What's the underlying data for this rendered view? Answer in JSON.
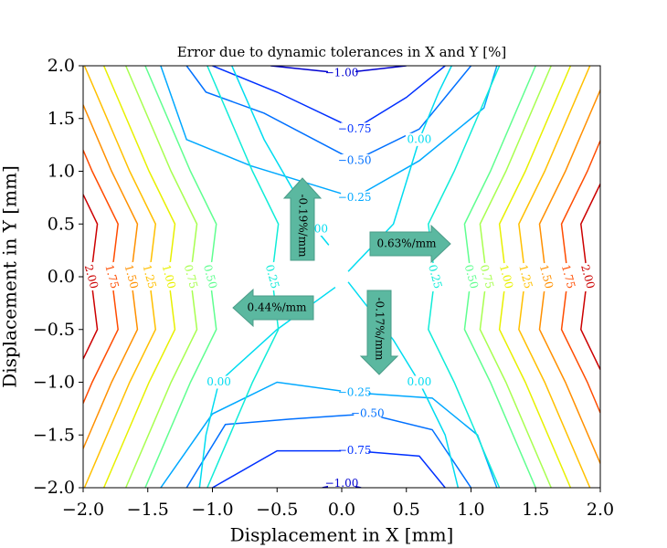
{
  "chart_data": {
    "type": "contour",
    "title": "Error due to dynamic tolerances in X and Y [%]",
    "x_label": "Displacement in X [mm]",
    "y_label": "Displacement in Y [mm]",
    "xlim": [
      -2,
      2
    ],
    "ylim": [
      -2,
      2
    ],
    "xticks": [
      {
        "value": -2,
        "label": "−2.0"
      },
      {
        "value": -1.5,
        "label": "−1.5"
      },
      {
        "value": -1,
        "label": "−1.0"
      },
      {
        "value": -0.5,
        "label": "−0.5"
      },
      {
        "value": 0,
        "label": "0.0"
      },
      {
        "value": 0.5,
        "label": "0.5"
      },
      {
        "value": 1,
        "label": "1.0"
      },
      {
        "value": 1.5,
        "label": "1.5"
      },
      {
        "value": 2,
        "label": "2.0"
      }
    ],
    "yticks": [
      {
        "value": -2,
        "label": "−2.0"
      },
      {
        "value": -1.5,
        "label": "−1.5"
      },
      {
        "value": -1,
        "label": "−1.0"
      },
      {
        "value": -0.5,
        "label": "−0.5"
      },
      {
        "value": 0,
        "label": "0.0"
      },
      {
        "value": 0.5,
        "label": "0.5"
      },
      {
        "value": 1,
        "label": "1.0"
      },
      {
        "value": 1.5,
        "label": "1.5"
      },
      {
        "value": 2,
        "label": "2.0"
      }
    ],
    "contours": [
      {
        "level": -1,
        "level_label": "−1.00",
        "color": "#0000d0",
        "pieces": [
          {
            "x": [
              -0.55,
              0.0,
              0.5
            ],
            "y": [
              2,
              1.93,
              2
            ]
          },
          {
            "x": [
              -0.15,
              0.0,
              0.15
            ],
            "y": [
              -2,
              -1.96,
              -2
            ]
          }
        ]
      },
      {
        "level": -0.75,
        "level_label": "−0.75",
        "color": "#0030ff",
        "pieces": [
          {
            "x": [
              -1.0,
              -0.5,
              0.1,
              0.5,
              0.8
            ],
            "y": [
              2,
              1.75,
              1.4,
              1.7,
              2
            ]
          },
          {
            "x": [
              -1.0,
              -0.5,
              0.1,
              0.6,
              0.8
            ],
            "y": [
              -2,
              -1.65,
              -1.65,
              -1.7,
              -2
            ]
          }
        ]
      },
      {
        "level": -0.5,
        "level_label": "−0.50",
        "color": "#0070ff",
        "pieces": [
          {
            "x": [
              -1.2,
              -1.05,
              -0.6,
              0.1,
              0.6,
              1.0
            ],
            "y": [
              2,
              1.75,
              1.55,
              1.1,
              1.4,
              2
            ]
          },
          {
            "x": [
              -1.2,
              -0.9,
              -0.4,
              0.2,
              0.7,
              1.0
            ],
            "y": [
              -2,
              -1.4,
              -1.35,
              -1.3,
              -1.45,
              -2
            ]
          }
        ]
      },
      {
        "level": -0.25,
        "level_label": "−0.25",
        "color": "#00a8ff",
        "pieces": [
          {
            "x": [
              -1.4,
              -1.2,
              -0.7,
              0.1,
              0.6,
              1.1,
              1.2
            ],
            "y": [
              2,
              1.3,
              1.05,
              0.75,
              1.1,
              1.6,
              2
            ]
          },
          {
            "x": [
              -1.4,
              -1.0,
              -0.5,
              0.1,
              0.7,
              1.05,
              1.2
            ],
            "y": [
              -2,
              -1.3,
              -1.0,
              -1.1,
              -1.15,
              -1.5,
              -2
            ]
          }
        ]
      },
      {
        "level": 0,
        "level_label": "0.00",
        "color": "#00dcf0",
        "pieces": [
          {
            "x": [
              -0.85,
              -0.6,
              -0.2,
              -0.1
            ],
            "y": [
              2,
              1.3,
              0.45,
              0.3
            ]
          },
          {
            "x": [
              0.05,
              0.4,
              0.6,
              0.75,
              0.85
            ],
            "y": [
              0.05,
              0.5,
              1.3,
              1.75,
              2
            ]
          },
          {
            "x": [
              -0.05,
              -0.5,
              -0.95,
              -1.05,
              -1.1
            ],
            "y": [
              -0.1,
              -0.5,
              -1.0,
              -1.5,
              -2
            ]
          },
          {
            "x": [
              0.05,
              0.4,
              0.6,
              0.8,
              0.9
            ],
            "y": [
              -0.05,
              -0.6,
              -1.0,
              -1.5,
              -2
            ]
          }
        ]
      },
      {
        "level": 0.25,
        "level_label": "0.25",
        "color": "#10ecd8",
        "pieces": [
          {
            "x": [
              -1.04,
              -0.69,
              -0.49,
              -0.54,
              -0.49,
              -0.69,
              -1.04
            ],
            "y": [
              2,
              1,
              0.5,
              0,
              -0.5,
              -1,
              -2
            ]
          },
          {
            "x": [
              1.22,
              0.87,
              0.67,
              0.72,
              0.67,
              0.87,
              1.22
            ],
            "y": [
              2,
              1,
              0.5,
              0,
              -0.5,
              -1,
              -2
            ]
          }
        ]
      },
      {
        "level": 0.5,
        "level_label": "0.50",
        "color": "#60ff90",
        "pieces": [
          {
            "x": [
              -1.52,
              -1.17,
              -0.97,
              -1.02,
              -0.97,
              -1.17,
              -1.52
            ],
            "y": [
              2,
              1,
              0.5,
              0,
              -0.5,
              -1,
              -2
            ]
          },
          {
            "x": [
              1.5,
              1.15,
              0.95,
              1.0,
              0.95,
              1.15,
              1.5
            ],
            "y": [
              2,
              1,
              0.5,
              0,
              -0.5,
              -1,
              -2
            ]
          }
        ]
      },
      {
        "level": 0.75,
        "level_label": "0.75",
        "color": "#a8ff50",
        "pieces": [
          {
            "x": [
              -1.67,
              -1.32,
              -1.12,
              -1.17,
              -1.12,
              -1.32,
              -1.67
            ],
            "y": [
              2,
              1,
              0.5,
              0,
              -0.5,
              -1,
              -2
            ]
          },
          {
            "x": [
              1.62,
              1.27,
              1.07,
              1.12,
              1.07,
              1.27,
              1.62
            ],
            "y": [
              2,
              1,
              0.5,
              0,
              -0.5,
              -1,
              -2
            ]
          }
        ]
      },
      {
        "level": 1,
        "level_label": "1.00",
        "color": "#e8f000",
        "pieces": [
          {
            "x": [
              -1.84,
              -1.49,
              -1.29,
              -1.34,
              -1.29,
              -1.49,
              -1.84
            ],
            "y": [
              2,
              1,
              0.5,
              0,
              -0.5,
              -1,
              -2
            ]
          },
          {
            "x": [
              1.77,
              1.42,
              1.22,
              1.27,
              1.22,
              1.42,
              1.77
            ],
            "y": [
              2,
              1,
              0.5,
              0,
              -0.5,
              -1,
              -2
            ]
          }
        ]
      },
      {
        "level": 1.25,
        "level_label": "1.25",
        "color": "#ffc000",
        "pieces": [
          {
            "x": [
              -1.99,
              -1.64,
              -1.44,
              -1.49,
              -1.44,
              -1.64,
              -1.99
            ],
            "y": [
              2,
              1,
              0.5,
              0,
              -0.5,
              -1,
              -2
            ]
          },
          {
            "x": [
              1.92,
              1.57,
              1.37,
              1.42,
              1.37,
              1.57,
              1.92
            ],
            "y": [
              2,
              1,
              0.5,
              0,
              -0.5,
              -1,
              -2
            ]
          }
        ]
      },
      {
        "level": 1.5,
        "level_label": "1.50",
        "color": "#ff9000",
        "pieces": [
          {
            "x": [
              -2,
              -1.78,
              -1.58,
              -1.63,
              -1.58,
              -1.78,
              -2
            ],
            "y": [
              1.63,
              1,
              0.5,
              0,
              -0.5,
              -1,
              -1.63
            ]
          },
          {
            "x": [
              2,
              1.73,
              1.53,
              1.58,
              1.53,
              1.73,
              2
            ],
            "y": [
              1.77,
              1,
              0.5,
              0,
              -0.5,
              -1,
              -1.77
            ]
          }
        ]
      },
      {
        "level": 1.75,
        "level_label": "1.75",
        "color": "#ff4c00",
        "pieces": [
          {
            "x": [
              -2,
              -1.93,
              -1.73,
              -1.78,
              -1.73,
              -1.93,
              -2
            ],
            "y": [
              1.2,
              1,
              0.5,
              0,
              -0.5,
              -1,
              -1.2
            ]
          },
          {
            "x": [
              2,
              1.9,
              1.7,
              1.75,
              1.7,
              1.9,
              2
            ],
            "y": [
              1.29,
              1,
              0.5,
              0,
              -0.5,
              -1,
              -1.29
            ]
          }
        ]
      },
      {
        "level": 2,
        "level_label": "2.00",
        "color": "#cc0000",
        "pieces": [
          {
            "x": [
              -2,
              -1.89,
              -1.94,
              -1.89,
              -2
            ],
            "y": [
              0.78,
              0.5,
              0,
              -0.5,
              -0.78
            ]
          },
          {
            "x": [
              2,
              1.85,
              1.9,
              1.85,
              2
            ],
            "y": [
              0.88,
              0.5,
              0,
              -0.5,
              -0.88
            ]
          }
        ]
      }
    ],
    "annotations": [
      "-0.19%/mm",
      "0.63%/mm",
      "0.44%/mm",
      "-0.17%/mm"
    ]
  }
}
